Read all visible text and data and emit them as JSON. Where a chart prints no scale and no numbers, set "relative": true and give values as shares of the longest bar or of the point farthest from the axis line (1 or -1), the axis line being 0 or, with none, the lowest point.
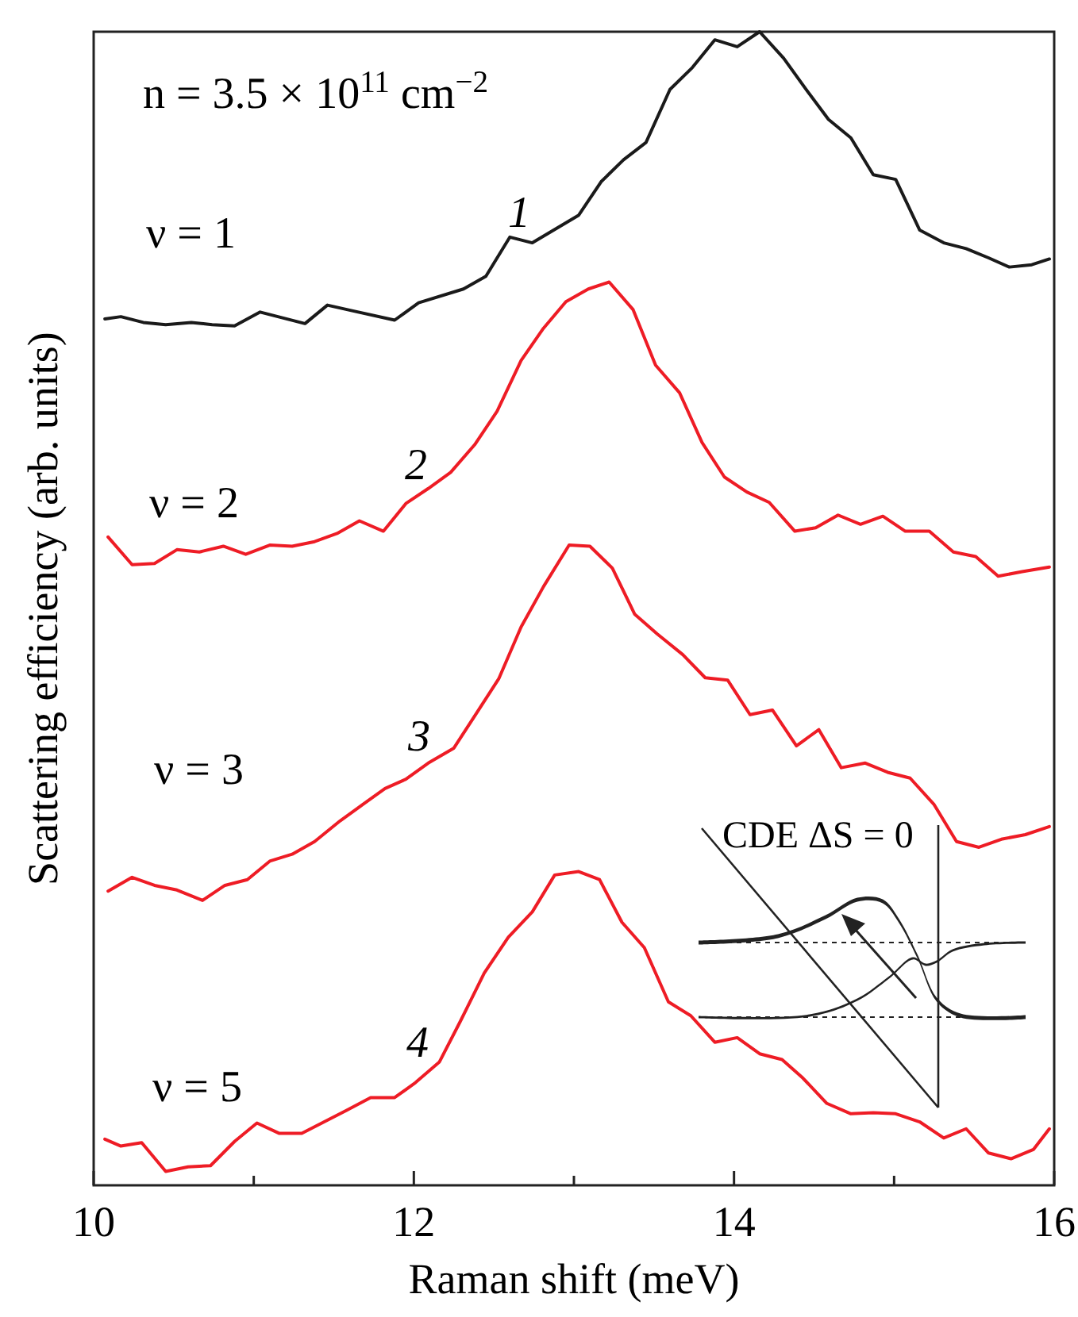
{
  "chart_data": {
    "type": "line",
    "relative": true,
    "xlabel": "Raman shift  (meV)",
    "ylabel": "Scattering efficiency  (arb. units)",
    "xlim": [
      10,
      16
    ],
    "xticks": [
      10,
      {
        "value": 11,
        "label": null
      },
      12,
      {
        "value": 13,
        "label": null
      },
      14,
      {
        "value": 15,
        "label": null
      },
      16
    ],
    "line_style": "solid",
    "marker": "none",
    "series": [
      {
        "name": "ν = 1",
        "color": "#1a1a1a",
        "x": [
          10.07,
          10.17,
          10.31,
          10.45,
          10.61,
          10.74,
          10.88,
          11.04,
          11.32,
          11.46,
          11.62,
          11.88,
          12.03,
          12.31,
          12.45,
          12.6,
          12.74,
          13.03,
          13.17,
          13.31,
          13.45,
          13.6,
          13.74,
          13.88,
          14.02,
          14.16,
          14.31,
          14.45,
          14.59,
          14.73,
          14.87,
          15.01,
          15.16,
          15.31,
          15.45,
          15.59,
          15.72,
          15.86,
          15.97
        ],
        "values": [
          0.751,
          0.753,
          0.748,
          0.746,
          0.748,
          0.746,
          0.745,
          0.757,
          0.747,
          0.763,
          0.758,
          0.75,
          0.765,
          0.777,
          0.788,
          0.822,
          0.817,
          0.841,
          0.87,
          0.889,
          0.904,
          0.95,
          0.969,
          0.993,
          0.987,
          1.0,
          0.977,
          0.95,
          0.924,
          0.908,
          0.876,
          0.872,
          0.828,
          0.817,
          0.812,
          0.804,
          0.796,
          0.798,
          0.803
        ]
      },
      {
        "name": "ν = 2",
        "color": "#ee1c25",
        "x": [
          10.09,
          10.24,
          10.38,
          10.52,
          10.66,
          10.81,
          10.95,
          11.1,
          11.24,
          11.38,
          11.52,
          11.66,
          11.81,
          11.95,
          12.09,
          12.23,
          12.38,
          12.52,
          12.67,
          12.81,
          12.95,
          13.09,
          13.22,
          13.37,
          13.51,
          13.66,
          13.8,
          13.94,
          14.08,
          14.22,
          14.38,
          14.51,
          14.65,
          14.79,
          14.93,
          15.07,
          15.22,
          15.37,
          15.51,
          15.65,
          15.8,
          15.97
        ],
        "values": [
          0.562,
          0.538,
          0.539,
          0.551,
          0.549,
          0.554,
          0.547,
          0.555,
          0.554,
          0.558,
          0.565,
          0.576,
          0.567,
          0.591,
          0.604,
          0.618,
          0.642,
          0.671,
          0.715,
          0.743,
          0.766,
          0.777,
          0.783,
          0.759,
          0.711,
          0.687,
          0.644,
          0.614,
          0.601,
          0.592,
          0.567,
          0.57,
          0.581,
          0.573,
          0.58,
          0.567,
          0.567,
          0.549,
          0.545,
          0.528,
          0.532,
          0.536
        ]
      },
      {
        "name": "ν = 3",
        "color": "#ee1c25",
        "x": [
          10.09,
          10.24,
          10.38,
          10.52,
          10.68,
          10.82,
          10.96,
          11.1,
          11.24,
          11.38,
          11.54,
          11.68,
          11.82,
          11.95,
          12.09,
          12.25,
          12.39,
          12.53,
          12.67,
          12.81,
          12.97,
          13.1,
          13.24,
          13.38,
          13.52,
          13.68,
          13.82,
          13.96,
          14.1,
          14.24,
          14.39,
          14.53,
          14.67,
          14.82,
          14.96,
          15.1,
          15.25,
          15.39,
          15.53,
          15.67,
          15.82,
          15.97
        ],
        "values": [
          0.255,
          0.267,
          0.26,
          0.256,
          0.247,
          0.26,
          0.265,
          0.281,
          0.287,
          0.298,
          0.316,
          0.33,
          0.344,
          0.352,
          0.366,
          0.379,
          0.409,
          0.439,
          0.484,
          0.519,
          0.555,
          0.554,
          0.535,
          0.495,
          0.478,
          0.46,
          0.44,
          0.438,
          0.408,
          0.412,
          0.381,
          0.395,
          0.362,
          0.366,
          0.358,
          0.353,
          0.33,
          0.298,
          0.293,
          0.3,
          0.304,
          0.311
        ]
      },
      {
        "name": "ν = 5",
        "color": "#ee1c25",
        "x": [
          10.07,
          10.17,
          10.3,
          10.45,
          10.59,
          10.73,
          10.88,
          11.02,
          11.16,
          11.3,
          11.44,
          11.58,
          11.73,
          11.88,
          12.01,
          12.16,
          12.29,
          12.44,
          12.59,
          12.74,
          12.88,
          13.03,
          13.16,
          13.3,
          13.44,
          13.59,
          13.73,
          13.88,
          14.02,
          14.16,
          14.3,
          14.43,
          14.58,
          14.73,
          14.87,
          15.01,
          15.16,
          15.31,
          15.45,
          15.59,
          15.73,
          15.87,
          15.97
        ],
        "values": [
          0.04,
          0.034,
          0.037,
          0.012,
          0.016,
          0.017,
          0.038,
          0.054,
          0.045,
          0.045,
          0.055,
          0.065,
          0.076,
          0.076,
          0.089,
          0.107,
          0.142,
          0.184,
          0.215,
          0.237,
          0.269,
          0.272,
          0.265,
          0.228,
          0.206,
          0.159,
          0.147,
          0.124,
          0.128,
          0.114,
          0.109,
          0.093,
          0.071,
          0.062,
          0.063,
          0.062,
          0.055,
          0.041,
          0.049,
          0.028,
          0.023,
          0.031,
          0.049
        ]
      }
    ],
    "annotations": [
      "n = 3.5 × 10$^{11}$ cm$^{−2}$",
      "1",
      "2",
      "3",
      "4",
      "CDE ΔS = 0"
    ]
  }
}
